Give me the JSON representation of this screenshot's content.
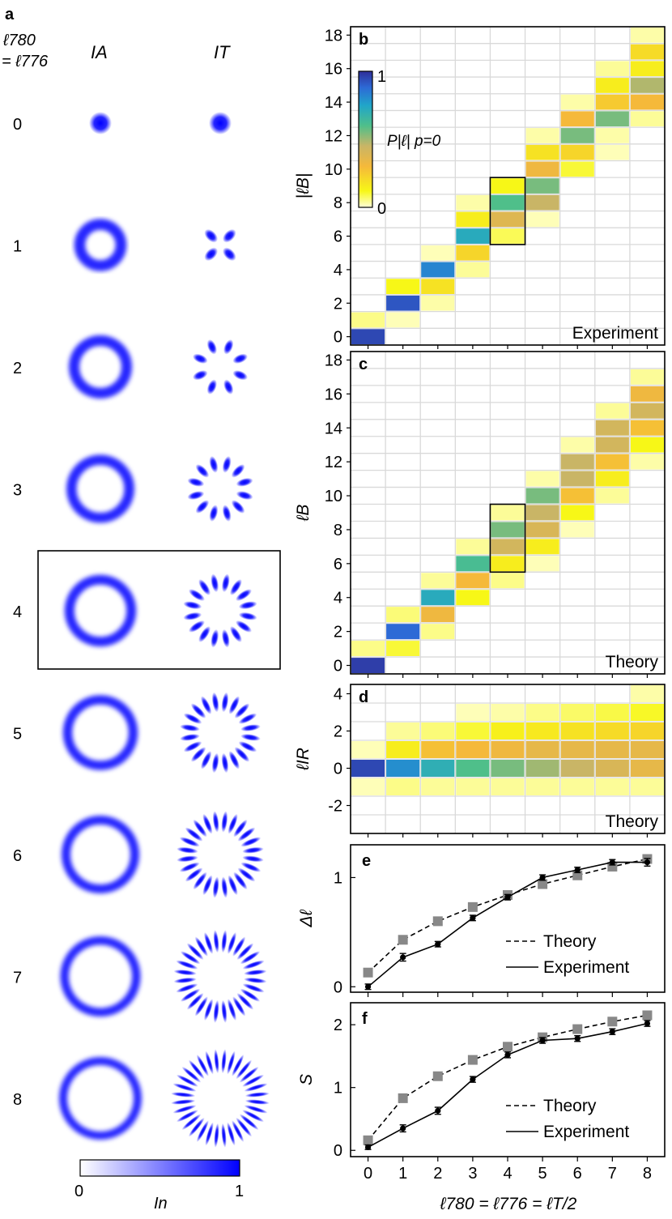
{
  "panel_a": {
    "label": "a",
    "row_header_line1": "ℓ780",
    "row_header_line2": "= ℓ776",
    "col_A": "IA",
    "col_T": "IT",
    "rows": [
      "0",
      "1",
      "2",
      "3",
      "4",
      "5",
      "6",
      "7",
      "8"
    ],
    "highlight_row": "4",
    "colorbar": {
      "min": "0",
      "max": "1",
      "label": "In",
      "color": "#0000ff"
    }
  },
  "chart_data": [
    {
      "type": "heatmap",
      "panel": "b",
      "ylabel": "|ℓB|",
      "note": "Experiment",
      "colorbar": {
        "label": "P|ℓ| p=0",
        "min": "0",
        "max": "1"
      },
      "x": [
        0,
        1,
        2,
        3,
        4,
        5,
        6,
        7,
        8
      ],
      "y": [
        0,
        1,
        2,
        3,
        4,
        5,
        6,
        7,
        8,
        9,
        10,
        11,
        12,
        13,
        14,
        15,
        16,
        17,
        18
      ],
      "yticks": [
        "0",
        "2",
        "4",
        "6",
        "8",
        "10",
        "12",
        "14",
        "16",
        "18"
      ],
      "highlight": {
        "x": 4,
        "y_range": [
          6,
          9
        ]
      },
      "cells": [
        [
          0,
          0,
          0.95
        ],
        [
          0,
          1,
          0.05
        ],
        [
          1,
          1,
          0.02
        ],
        [
          1,
          2,
          0.92
        ],
        [
          1,
          3,
          0.12
        ],
        [
          2,
          2,
          0.03
        ],
        [
          2,
          3,
          0.18
        ],
        [
          2,
          4,
          0.82
        ],
        [
          2,
          5,
          0.02
        ],
        [
          3,
          4,
          0.04
        ],
        [
          3,
          5,
          0.22
        ],
        [
          3,
          6,
          0.72
        ],
        [
          3,
          7,
          0.15
        ],
        [
          3,
          8,
          0.03
        ],
        [
          4,
          6,
          0.08
        ],
        [
          4,
          7,
          0.38
        ],
        [
          4,
          8,
          0.6
        ],
        [
          4,
          9,
          0.12
        ],
        [
          5,
          7,
          0.02
        ],
        [
          5,
          8,
          0.45
        ],
        [
          5,
          9,
          0.55
        ],
        [
          5,
          10,
          0.32
        ],
        [
          5,
          11,
          0.18
        ],
        [
          5,
          12,
          0.03
        ],
        [
          6,
          10,
          0.1
        ],
        [
          6,
          11,
          0.22
        ],
        [
          6,
          12,
          0.55
        ],
        [
          6,
          13,
          0.3
        ],
        [
          6,
          14,
          0.03
        ],
        [
          7,
          11,
          0.02
        ],
        [
          7,
          12,
          0.03
        ],
        [
          7,
          13,
          0.55
        ],
        [
          7,
          14,
          0.25
        ],
        [
          7,
          15,
          0.15
        ],
        [
          7,
          16,
          0.04
        ],
        [
          8,
          13,
          0.04
        ],
        [
          8,
          14,
          0.3
        ],
        [
          8,
          15,
          0.48
        ],
        [
          8,
          16,
          0.15
        ],
        [
          8,
          17,
          0.2
        ],
        [
          8,
          18,
          0.03
        ]
      ]
    },
    {
      "type": "heatmap",
      "panel": "c",
      "ylabel": "ℓB",
      "note": "Theory",
      "x": [
        0,
        1,
        2,
        3,
        4,
        5,
        6,
        7,
        8
      ],
      "y": [
        0,
        1,
        2,
        3,
        4,
        5,
        6,
        7,
        8,
        9,
        10,
        11,
        12,
        13,
        14,
        15,
        16,
        17,
        18
      ],
      "yticks": [
        "0",
        "2",
        "4",
        "6",
        "8",
        "10",
        "12",
        "14",
        "16",
        "18"
      ],
      "highlight": {
        "x": 4,
        "y_range": [
          6,
          9
        ]
      },
      "cells": [
        [
          0,
          0,
          0.97
        ],
        [
          0,
          1,
          0.05
        ],
        [
          1,
          1,
          0.1
        ],
        [
          1,
          2,
          0.88
        ],
        [
          1,
          3,
          0.06
        ],
        [
          2,
          2,
          0.05
        ],
        [
          2,
          3,
          0.32
        ],
        [
          2,
          4,
          0.72
        ],
        [
          2,
          5,
          0.04
        ],
        [
          3,
          4,
          0.12
        ],
        [
          3,
          5,
          0.3
        ],
        [
          3,
          6,
          0.62
        ],
        [
          3,
          7,
          0.04
        ],
        [
          4,
          5,
          0.05
        ],
        [
          4,
          6,
          0.15
        ],
        [
          4,
          7,
          0.42
        ],
        [
          4,
          8,
          0.55
        ],
        [
          4,
          9,
          0.04
        ],
        [
          5,
          6,
          0.02
        ],
        [
          5,
          7,
          0.15
        ],
        [
          5,
          8,
          0.4
        ],
        [
          5,
          9,
          0.45
        ],
        [
          5,
          10,
          0.55
        ],
        [
          5,
          11,
          0.03
        ],
        [
          6,
          8,
          0.02
        ],
        [
          6,
          9,
          0.12
        ],
        [
          6,
          10,
          0.28
        ],
        [
          6,
          11,
          0.45
        ],
        [
          6,
          12,
          0.45
        ],
        [
          6,
          13,
          0.03
        ],
        [
          7,
          10,
          0.04
        ],
        [
          7,
          11,
          0.15
        ],
        [
          7,
          12,
          0.28
        ],
        [
          7,
          13,
          0.42
        ],
        [
          7,
          14,
          0.42
        ],
        [
          7,
          15,
          0.04
        ],
        [
          8,
          12,
          0.03
        ],
        [
          8,
          13,
          0.12
        ],
        [
          8,
          14,
          0.28
        ],
        [
          8,
          15,
          0.42
        ],
        [
          8,
          16,
          0.32
        ],
        [
          8,
          17,
          0.04
        ]
      ]
    },
    {
      "type": "heatmap",
      "panel": "d",
      "ylabel": "ℓIR",
      "note": "Theory",
      "x": [
        0,
        1,
        2,
        3,
        4,
        5,
        6,
        7,
        8
      ],
      "y": [
        -3,
        -2,
        -1,
        0,
        1,
        2,
        3,
        4
      ],
      "yticks": [
        "-2",
        "0",
        "2",
        "4"
      ],
      "cells": [
        [
          0,
          -1,
          0.02
        ],
        [
          0,
          0,
          0.95
        ],
        [
          0,
          1,
          0.02
        ],
        [
          1,
          -1,
          0.05
        ],
        [
          1,
          0,
          0.8
        ],
        [
          1,
          1,
          0.15
        ],
        [
          1,
          2,
          0.04
        ],
        [
          2,
          -1,
          0.04
        ],
        [
          2,
          0,
          0.7
        ],
        [
          2,
          1,
          0.28
        ],
        [
          2,
          2,
          0.06
        ],
        [
          3,
          -1,
          0.04
        ],
        [
          3,
          0,
          0.6
        ],
        [
          3,
          1,
          0.3
        ],
        [
          3,
          2,
          0.1
        ],
        [
          3,
          3,
          0.02
        ],
        [
          4,
          -1,
          0.04
        ],
        [
          4,
          0,
          0.55
        ],
        [
          4,
          1,
          0.32
        ],
        [
          4,
          2,
          0.14
        ],
        [
          4,
          3,
          0.03
        ],
        [
          5,
          -1,
          0.04
        ],
        [
          5,
          0,
          0.5
        ],
        [
          5,
          1,
          0.35
        ],
        [
          5,
          2,
          0.16
        ],
        [
          5,
          3,
          0.05
        ],
        [
          6,
          -1,
          0.04
        ],
        [
          6,
          0,
          0.45
        ],
        [
          6,
          1,
          0.35
        ],
        [
          6,
          2,
          0.18
        ],
        [
          6,
          3,
          0.07
        ],
        [
          7,
          -1,
          0.04
        ],
        [
          7,
          0,
          0.4
        ],
        [
          7,
          1,
          0.35
        ],
        [
          7,
          2,
          0.2
        ],
        [
          7,
          3,
          0.09
        ],
        [
          8,
          -1,
          0.04
        ],
        [
          8,
          0,
          0.35
        ],
        [
          8,
          1,
          0.35
        ],
        [
          8,
          2,
          0.22
        ],
        [
          8,
          3,
          0.11
        ],
        [
          8,
          4,
          0.03
        ]
      ]
    },
    {
      "type": "line",
      "panel": "e",
      "ylabel": "Δℓ",
      "x": [
        0,
        1,
        2,
        3,
        4,
        5,
        6,
        7,
        8
      ],
      "ylim": [
        -0.05,
        1.3
      ],
      "yticks": [
        "0",
        "1"
      ],
      "series": [
        {
          "name": "Theory",
          "style": "dashed",
          "marker": "square",
          "values": [
            0.13,
            0.43,
            0.6,
            0.73,
            0.84,
            0.94,
            1.02,
            1.1,
            1.17
          ]
        },
        {
          "name": "Experiment",
          "style": "solid",
          "marker": "circle",
          "values": [
            0.0,
            0.27,
            0.39,
            0.63,
            0.82,
            1.0,
            1.07,
            1.14,
            1.14
          ],
          "errors": [
            0.01,
            0.02,
            0.01,
            0.01,
            0.01,
            0.01,
            0.01,
            0.01,
            0.02
          ]
        }
      ]
    },
    {
      "type": "line",
      "panel": "f",
      "ylabel": "S",
      "xlabel": "ℓ780 = ℓ776 = ℓT/2",
      "x": [
        0,
        1,
        2,
        3,
        4,
        5,
        6,
        7,
        8
      ],
      "xticks": [
        "0",
        "1",
        "2",
        "3",
        "4",
        "5",
        "6",
        "7",
        "8"
      ],
      "ylim": [
        -0.1,
        2.35
      ],
      "yticks": [
        "0",
        "1",
        "2"
      ],
      "series": [
        {
          "name": "Theory",
          "style": "dashed",
          "marker": "square",
          "values": [
            0.16,
            0.83,
            1.18,
            1.44,
            1.65,
            1.8,
            1.93,
            2.05,
            2.15
          ]
        },
        {
          "name": "Experiment",
          "style": "solid",
          "marker": "circle",
          "values": [
            0.05,
            0.35,
            0.63,
            1.13,
            1.52,
            1.75,
            1.78,
            1.89,
            2.02
          ],
          "errors": [
            0.01,
            0.03,
            0.03,
            0.02,
            0.02,
            0.02,
            0.02,
            0.02,
            0.02
          ]
        }
      ]
    }
  ]
}
